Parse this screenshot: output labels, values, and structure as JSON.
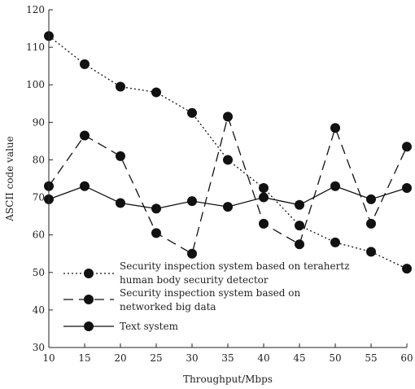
{
  "chart_data": {
    "type": "line",
    "title": "",
    "xlabel": "Throughput/Mbps",
    "ylabel": "ASCII code value",
    "x": [
      10,
      15,
      20,
      25,
      30,
      35,
      40,
      45,
      50,
      55,
      60
    ],
    "xlim": [
      10,
      60
    ],
    "ylim": [
      30,
      120
    ],
    "xticks": [
      "10",
      "15",
      "20",
      "25",
      "30",
      "35",
      "40",
      "45",
      "50",
      "55",
      "60"
    ],
    "yticks": [
      "30",
      "40",
      "50",
      "60",
      "70",
      "80",
      "90",
      "100",
      "110",
      "120"
    ],
    "grid": false,
    "legend_position": "bottom-left",
    "series": [
      {
        "name": "Security inspection system based on terahertz human body security detector",
        "label_lines": [
          "Security inspection system based on terahertz",
          "human body security detector"
        ],
        "line_style": "dotted",
        "color": "#111111",
        "values": [
          113,
          105.5,
          99.5,
          98,
          92.5,
          80,
          72.5,
          62.5,
          58,
          55.5,
          51
        ]
      },
      {
        "name": "Security inspection system based on networked big data",
        "label_lines": [
          "Security inspection system based on",
          "networked big data"
        ],
        "line_style": "dashed",
        "color": "#111111",
        "values": [
          73,
          86.5,
          81,
          60.5,
          55,
          91.5,
          63,
          57.5,
          88.5,
          63,
          83.5
        ]
      },
      {
        "name": "Text system",
        "label_lines": [
          "Text system"
        ],
        "line_style": "solid",
        "color": "#111111",
        "values": [
          69.5,
          73,
          68.5,
          67,
          69,
          67.5,
          70,
          68,
          73,
          69.5,
          72.5
        ]
      }
    ]
  }
}
